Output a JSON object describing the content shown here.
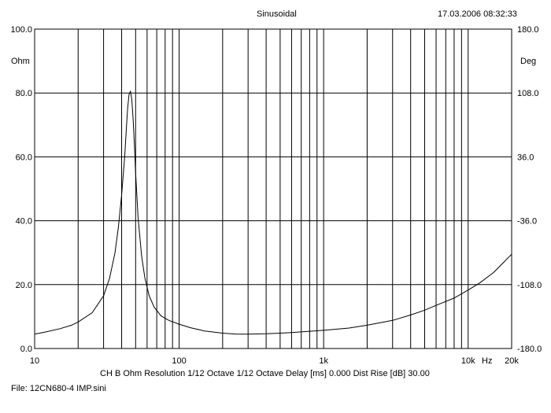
{
  "header": {
    "title": "Sinusoidal",
    "timestamp": "17.03.2006 08:32:33"
  },
  "footer": {
    "measurement_info": "CH B   Ohm   Resolution 1/12 Octave   1/12 Octave   Delay [ms] 0.000   Dist Rise [dB] 30.00",
    "file_label": "File: 12CN680-4 IMP.sini"
  },
  "chart_data": {
    "type": "line",
    "title": "Sinusoidal",
    "x_scale": "log",
    "xlim": [
      10,
      20000
    ],
    "x_unit": "Hz",
    "x_tick_labels": [
      {
        "value": 10,
        "label": "10"
      },
      {
        "value": 100,
        "label": "100"
      },
      {
        "value": 1000,
        "label": "1k"
      },
      {
        "value": 10000,
        "label": "10k"
      },
      {
        "value": 20000,
        "label": "20k"
      }
    ],
    "y_left": {
      "unit": "Ohm",
      "ylim": [
        0,
        100
      ],
      "ticks": [
        0,
        20,
        40,
        60,
        80,
        100
      ],
      "tick_labels": [
        "0.0",
        "20.0",
        "40.0",
        "60.0",
        "80.0",
        "100.0"
      ]
    },
    "y_right": {
      "unit": "Deg",
      "ylim": [
        -180,
        180
      ],
      "tick_labels": [
        "180.0",
        "108.0",
        "36.0",
        "-36.0",
        "-108.0",
        "-180.0"
      ]
    },
    "grid": true,
    "series": [
      {
        "unit": "Ohm",
        "color": "#000000",
        "x": [
          10,
          12,
          15,
          18,
          20,
          25,
          30,
          33,
          36,
          38,
          40,
          42,
          43,
          44,
          45,
          46,
          47,
          48,
          49,
          50,
          52,
          55,
          58,
          62,
          67,
          75,
          85,
          100,
          120,
          150,
          200,
          250,
          300,
          400,
          500,
          600,
          800,
          1000,
          1500,
          2000,
          3000,
          4000,
          5000,
          6000,
          8000,
          10000,
          12000,
          15000,
          20000
        ],
        "y": [
          4.5,
          5.2,
          6.2,
          7.3,
          8.3,
          11.2,
          16.5,
          22,
          30,
          38,
          48,
          60,
          68,
          75,
          79.5,
          80.5,
          78,
          72,
          64,
          55,
          41,
          29,
          22,
          16.5,
          13,
          10.2,
          8.8,
          7.6,
          6.5,
          5.5,
          4.8,
          4.5,
          4.5,
          4.6,
          4.8,
          5.0,
          5.4,
          5.7,
          6.4,
          7.3,
          8.8,
          10.5,
          12.0,
          13.5,
          15.8,
          18.3,
          20.5,
          23.8,
          29.5
        ]
      }
    ]
  }
}
